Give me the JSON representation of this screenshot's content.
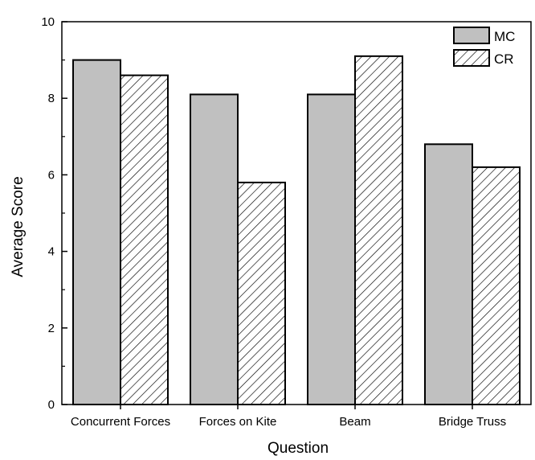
{
  "chart_data": {
    "type": "bar",
    "title": "",
    "xlabel": "Question",
    "ylabel": "Average Score",
    "categories": [
      "Concurrent Forces",
      "Forces on Kite",
      "Beam",
      "Bridge Truss"
    ],
    "series": [
      {
        "name": "MC",
        "values": [
          9.0,
          8.1,
          8.1,
          6.8
        ],
        "fill": "#c0c0c0",
        "pattern": "solid"
      },
      {
        "name": "CR",
        "values": [
          8.6,
          5.8,
          9.1,
          6.2
        ],
        "fill": "#ffffff",
        "pattern": "diagonal-hatch"
      }
    ],
    "ylim": [
      0,
      10
    ],
    "yticks": [
      0,
      2,
      4,
      6,
      8,
      10
    ],
    "grid": false,
    "legend_position": "top-right"
  }
}
